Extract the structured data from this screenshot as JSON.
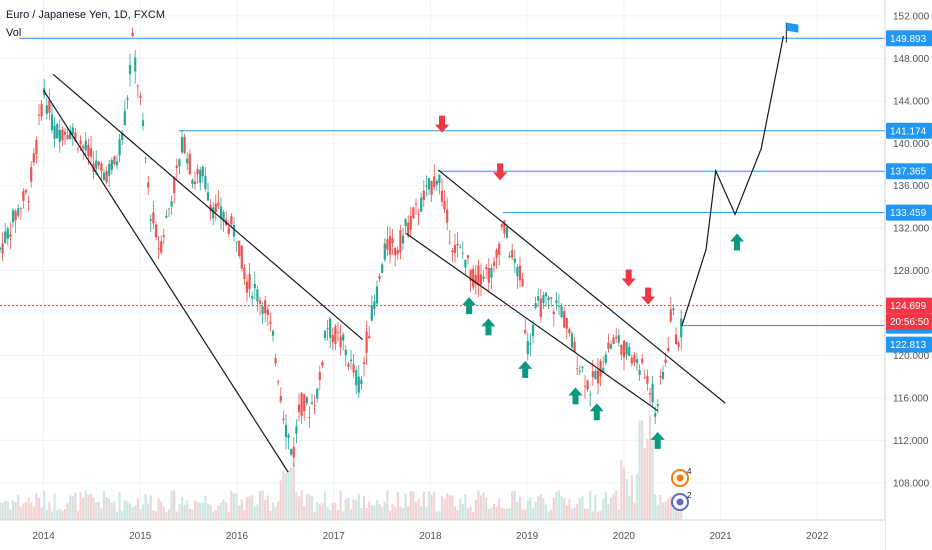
{
  "header": {
    "title": "Euro / Japanese Yen, 1D, FXCM",
    "indicator": "Vol"
  },
  "colors": {
    "level": "#2196f3",
    "current": "#f23645",
    "up_arrow": "#089981",
    "down_arrow": "#f23645",
    "trendline": "#131722",
    "candle_up": "#26a69a",
    "candle_down": "#ef5350",
    "volume_up": "#cde8e3",
    "volume_down": "#f2d3d3",
    "axis_bg": "#ffffff",
    "grid": "#f0f3fa"
  },
  "chart_data": {
    "type": "candlestick",
    "symbol": "EURJPY",
    "x_axis": {
      "ticks": [
        "2014",
        "2015",
        "2016",
        "2017",
        "2018",
        "2019",
        "2020",
        "2021",
        "2022"
      ],
      "range": [
        2013.55,
        2022.7
      ]
    },
    "y_axis": {
      "ticks": [
        "108.000",
        "112.000",
        "116.000",
        "120.000",
        "124.000",
        "128.000",
        "132.000",
        "136.000",
        "140.000",
        "144.000",
        "148.000",
        "152.000"
      ],
      "range": [
        104.5,
        153.5
      ]
    },
    "price_path": [
      [
        2013.55,
        130.0
      ],
      [
        2013.65,
        132.0
      ],
      [
        2013.75,
        134.0
      ],
      [
        2013.85,
        135.5
      ],
      [
        2013.93,
        140.0
      ],
      [
        2014.0,
        145.0
      ],
      [
        2014.12,
        141.0
      ],
      [
        2014.25,
        141.5
      ],
      [
        2014.35,
        140.5
      ],
      [
        2014.5,
        138.5
      ],
      [
        2014.6,
        137.0
      ],
      [
        2014.75,
        138.0
      ],
      [
        2014.85,
        143.0
      ],
      [
        2014.92,
        149.5
      ],
      [
        2015.0,
        144.0
      ],
      [
        2015.1,
        134.0
      ],
      [
        2015.2,
        130.0
      ],
      [
        2015.3,
        134.0
      ],
      [
        2015.4,
        138.0
      ],
      [
        2015.45,
        140.5
      ],
      [
        2015.55,
        136.5
      ],
      [
        2015.65,
        137.0
      ],
      [
        2015.75,
        134.0
      ],
      [
        2015.85,
        133.0
      ],
      [
        2016.0,
        131.5
      ],
      [
        2016.1,
        127.0
      ],
      [
        2016.2,
        126.0
      ],
      [
        2016.3,
        124.5
      ],
      [
        2016.4,
        120.0
      ],
      [
        2016.5,
        113.5
      ],
      [
        2016.58,
        110.5
      ],
      [
        2016.65,
        115.5
      ],
      [
        2016.75,
        115.0
      ],
      [
        2016.85,
        117.0
      ],
      [
        2016.92,
        123.0
      ],
      [
        2017.0,
        122.0
      ],
      [
        2017.1,
        121.0
      ],
      [
        2017.2,
        118.5
      ],
      [
        2017.28,
        117.0
      ],
      [
        2017.35,
        122.0
      ],
      [
        2017.45,
        126.0
      ],
      [
        2017.55,
        130.5
      ],
      [
        2017.65,
        130.0
      ],
      [
        2017.75,
        132.0
      ],
      [
        2017.85,
        133.5
      ],
      [
        2017.95,
        135.0
      ],
      [
        2018.08,
        137.3
      ],
      [
        2018.15,
        133.5
      ],
      [
        2018.25,
        130.0
      ],
      [
        2018.35,
        129.5
      ],
      [
        2018.45,
        127.0
      ],
      [
        2018.55,
        128.0
      ],
      [
        2018.65,
        127.5
      ],
      [
        2018.75,
        132.5
      ],
      [
        2018.85,
        129.0
      ],
      [
        2018.95,
        127.0
      ],
      [
        2019.0,
        120.5
      ],
      [
        2019.1,
        124.5
      ],
      [
        2019.2,
        125.0
      ],
      [
        2019.35,
        124.5
      ],
      [
        2019.45,
        121.5
      ],
      [
        2019.55,
        119.0
      ],
      [
        2019.65,
        117.0
      ],
      [
        2019.75,
        118.5
      ],
      [
        2019.85,
        121.0
      ],
      [
        2019.95,
        121.5
      ],
      [
        2020.05,
        120.0
      ],
      [
        2020.12,
        119.5
      ],
      [
        2020.2,
        118.5
      ],
      [
        2020.28,
        117.0
      ],
      [
        2020.33,
        114.8
      ],
      [
        2020.4,
        118.0
      ],
      [
        2020.45,
        120.5
      ],
      [
        2020.5,
        124.5
      ],
      [
        2020.55,
        121.0
      ],
      [
        2020.6,
        122.8
      ]
    ],
    "current_price": "124.699",
    "countdown": "20:56:50",
    "level_badges": [
      "149.893",
      "141.174",
      "137.365",
      "133.459",
      "122.813"
    ],
    "levels": [
      {
        "price": 149.893,
        "x_start": 2013.75
      },
      {
        "price": 141.174,
        "x_start": 2015.4
      },
      {
        "price": 137.365,
        "x_start": 2018.08
      },
      {
        "price": 133.459,
        "x_start": 2018.75
      },
      {
        "price": 122.813,
        "x_start": 2020.6
      }
    ],
    "trendlines": [
      {
        "from": [
          2014.1,
          146.5
        ],
        "to": [
          2017.3,
          121.5
        ]
      },
      {
        "from": [
          2014.0,
          145.0
        ],
        "to": [
          2016.53,
          109.0
        ]
      },
      {
        "from": [
          2018.08,
          137.5
        ],
        "to": [
          2021.05,
          115.5
        ]
      },
      {
        "from": [
          2017.75,
          131.5
        ],
        "to": [
          2020.35,
          114.8
        ]
      }
    ],
    "projection": [
      [
        2020.6,
        122.8
      ],
      [
        2020.85,
        130.0
      ],
      [
        2020.95,
        137.4
      ],
      [
        2021.15,
        133.3
      ],
      [
        2021.42,
        139.5
      ],
      [
        2021.65,
        150.1
      ]
    ],
    "target_flag": {
      "x": 2021.68,
      "price": 150.8
    },
    "down_arrows": [
      [
        2018.12,
        141.0
      ],
      [
        2018.72,
        136.5
      ],
      [
        2020.05,
        126.5
      ],
      [
        2020.25,
        124.8
      ]
    ],
    "up_arrows": [
      [
        2018.4,
        125.5
      ],
      [
        2018.6,
        123.5
      ],
      [
        2018.98,
        119.5
      ],
      [
        2019.5,
        117.0
      ],
      [
        2019.72,
        115.5
      ],
      [
        2020.35,
        112.8
      ],
      [
        2021.17,
        131.5
      ]
    ],
    "event_badges": [
      "4",
      "2"
    ]
  }
}
